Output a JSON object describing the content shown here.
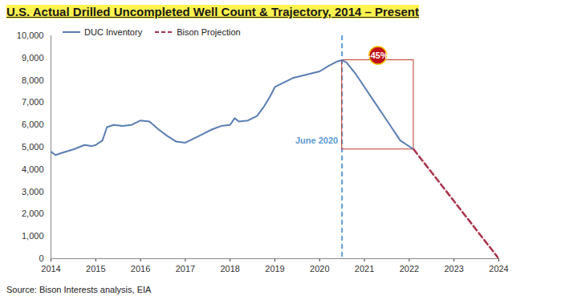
{
  "chart_data": {
    "type": "line",
    "title": "U.S. Actual Drilled Uncompleted Well Count & Trajectory, 2014 – Present",
    "caption": "Source: Bison Interests analysis, EIA",
    "series": [
      {
        "name": "DUC Inventory",
        "color": "#5a7db3",
        "line_style": "solid",
        "x": [
          2014.0,
          2014.1,
          2014.25,
          2014.5,
          2014.75,
          2014.9,
          2015.0,
          2015.15,
          2015.25,
          2015.4,
          2015.6,
          2015.8,
          2016.0,
          2016.2,
          2016.4,
          2016.6,
          2016.8,
          2017.0,
          2017.2,
          2017.4,
          2017.6,
          2017.8,
          2018.0,
          2018.1,
          2018.2,
          2018.4,
          2018.6,
          2018.75,
          2018.9,
          2019.0,
          2019.2,
          2019.4,
          2019.6,
          2019.8,
          2020.0,
          2020.2,
          2020.4,
          2020.5,
          2020.6,
          2020.8,
          2021.0,
          2021.2,
          2021.4,
          2021.6,
          2021.8,
          2022.1
        ],
        "values": [
          4800,
          4650,
          4750,
          4900,
          5100,
          5050,
          5100,
          5300,
          5900,
          6000,
          5950,
          6000,
          6200,
          6150,
          5800,
          5500,
          5250,
          5200,
          5400,
          5600,
          5800,
          5950,
          6000,
          6300,
          6150,
          6200,
          6400,
          6800,
          7300,
          7700,
          7900,
          8100,
          8200,
          8300,
          8400,
          8650,
          8850,
          8900,
          8800,
          8300,
          7700,
          7100,
          6500,
          5900,
          5300,
          4900
        ]
      },
      {
        "name": "Bison Projection",
        "color": "#a8324a",
        "line_style": "dashed",
        "x": [
          2022.1,
          2024.0
        ],
        "values": [
          4900,
          0
        ]
      }
    ],
    "annotations": [
      {
        "text": "June 2020",
        "x": 2020.5
      },
      {
        "text": "-45%"
      }
    ],
    "xlim": [
      2014,
      2024
    ],
    "xticks": [
      2014,
      2015,
      2016,
      2017,
      2018,
      2019,
      2020,
      2021,
      2022,
      2023,
      2024
    ],
    "ylim": [
      0,
      10000
    ],
    "yticks": [
      0,
      {
        "value": 1000,
        "label": "1,000"
      },
      {
        "value": 2000,
        "label": "2,000"
      },
      {
        "value": 3000,
        "label": "3,000"
      },
      {
        "value": 4000,
        "label": "4,000"
      },
      {
        "value": 5000,
        "label": "5,000"
      },
      {
        "value": 6000,
        "label": "6,000"
      },
      {
        "value": 7000,
        "label": "7,000"
      },
      {
        "value": 8000,
        "label": "8,000"
      },
      {
        "value": 9000,
        "label": "9,000"
      },
      {
        "value": 10000,
        "label": "10,000"
      }
    ],
    "grid": false,
    "legend": "top-left"
  }
}
